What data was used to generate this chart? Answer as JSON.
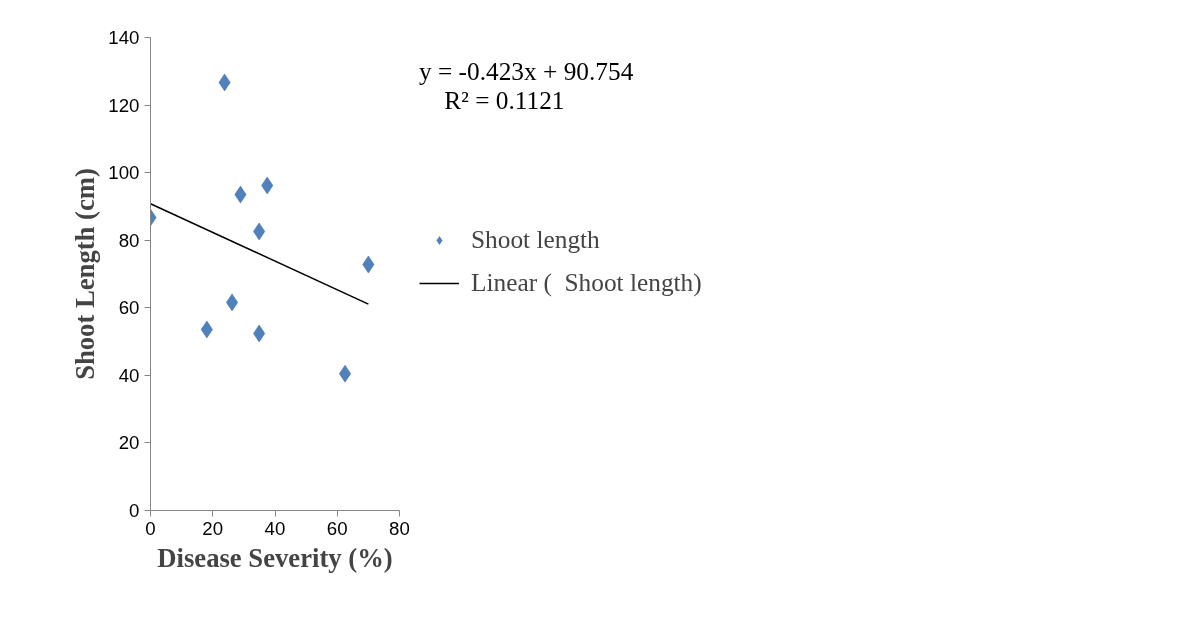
{
  "chart_data": {
    "type": "scatter",
    "xlabel": "Disease Severity (%)",
    "ylabel": "Shoot Length (cm)",
    "xlim": [
      0,
      80
    ],
    "xticks": [
      0,
      20,
      40,
      60,
      80
    ],
    "ylim": [
      0,
      140
    ],
    "yticks": [
      0,
      20,
      40,
      60,
      80,
      100,
      120,
      140
    ],
    "grid": false,
    "legend": "right",
    "marker": "diamond",
    "series": [
      {
        "name": "Shoot length",
        "color": "#4f81bd",
        "x": [
          0,
          18.1,
          23.8,
          26.2,
          28.9,
          34.9,
          34.9,
          37.5,
          62.5,
          70.0
        ],
        "values": [
          86.7,
          53.6,
          126.7,
          61.6,
          93.5,
          82.6,
          52.4,
          96.2,
          40.5,
          72.8
        ]
      },
      {
        "name": "Linear (  Shoot length)",
        "type": "line",
        "color": "#000000",
        "x": [
          0,
          70
        ],
        "values": [
          90.8,
          61.1
        ],
        "marker": "none",
        "line_style": "solid"
      }
    ],
    "annotations": [
      "y = -0.423x + 90.754",
      "R² = 0.1121"
    ]
  }
}
